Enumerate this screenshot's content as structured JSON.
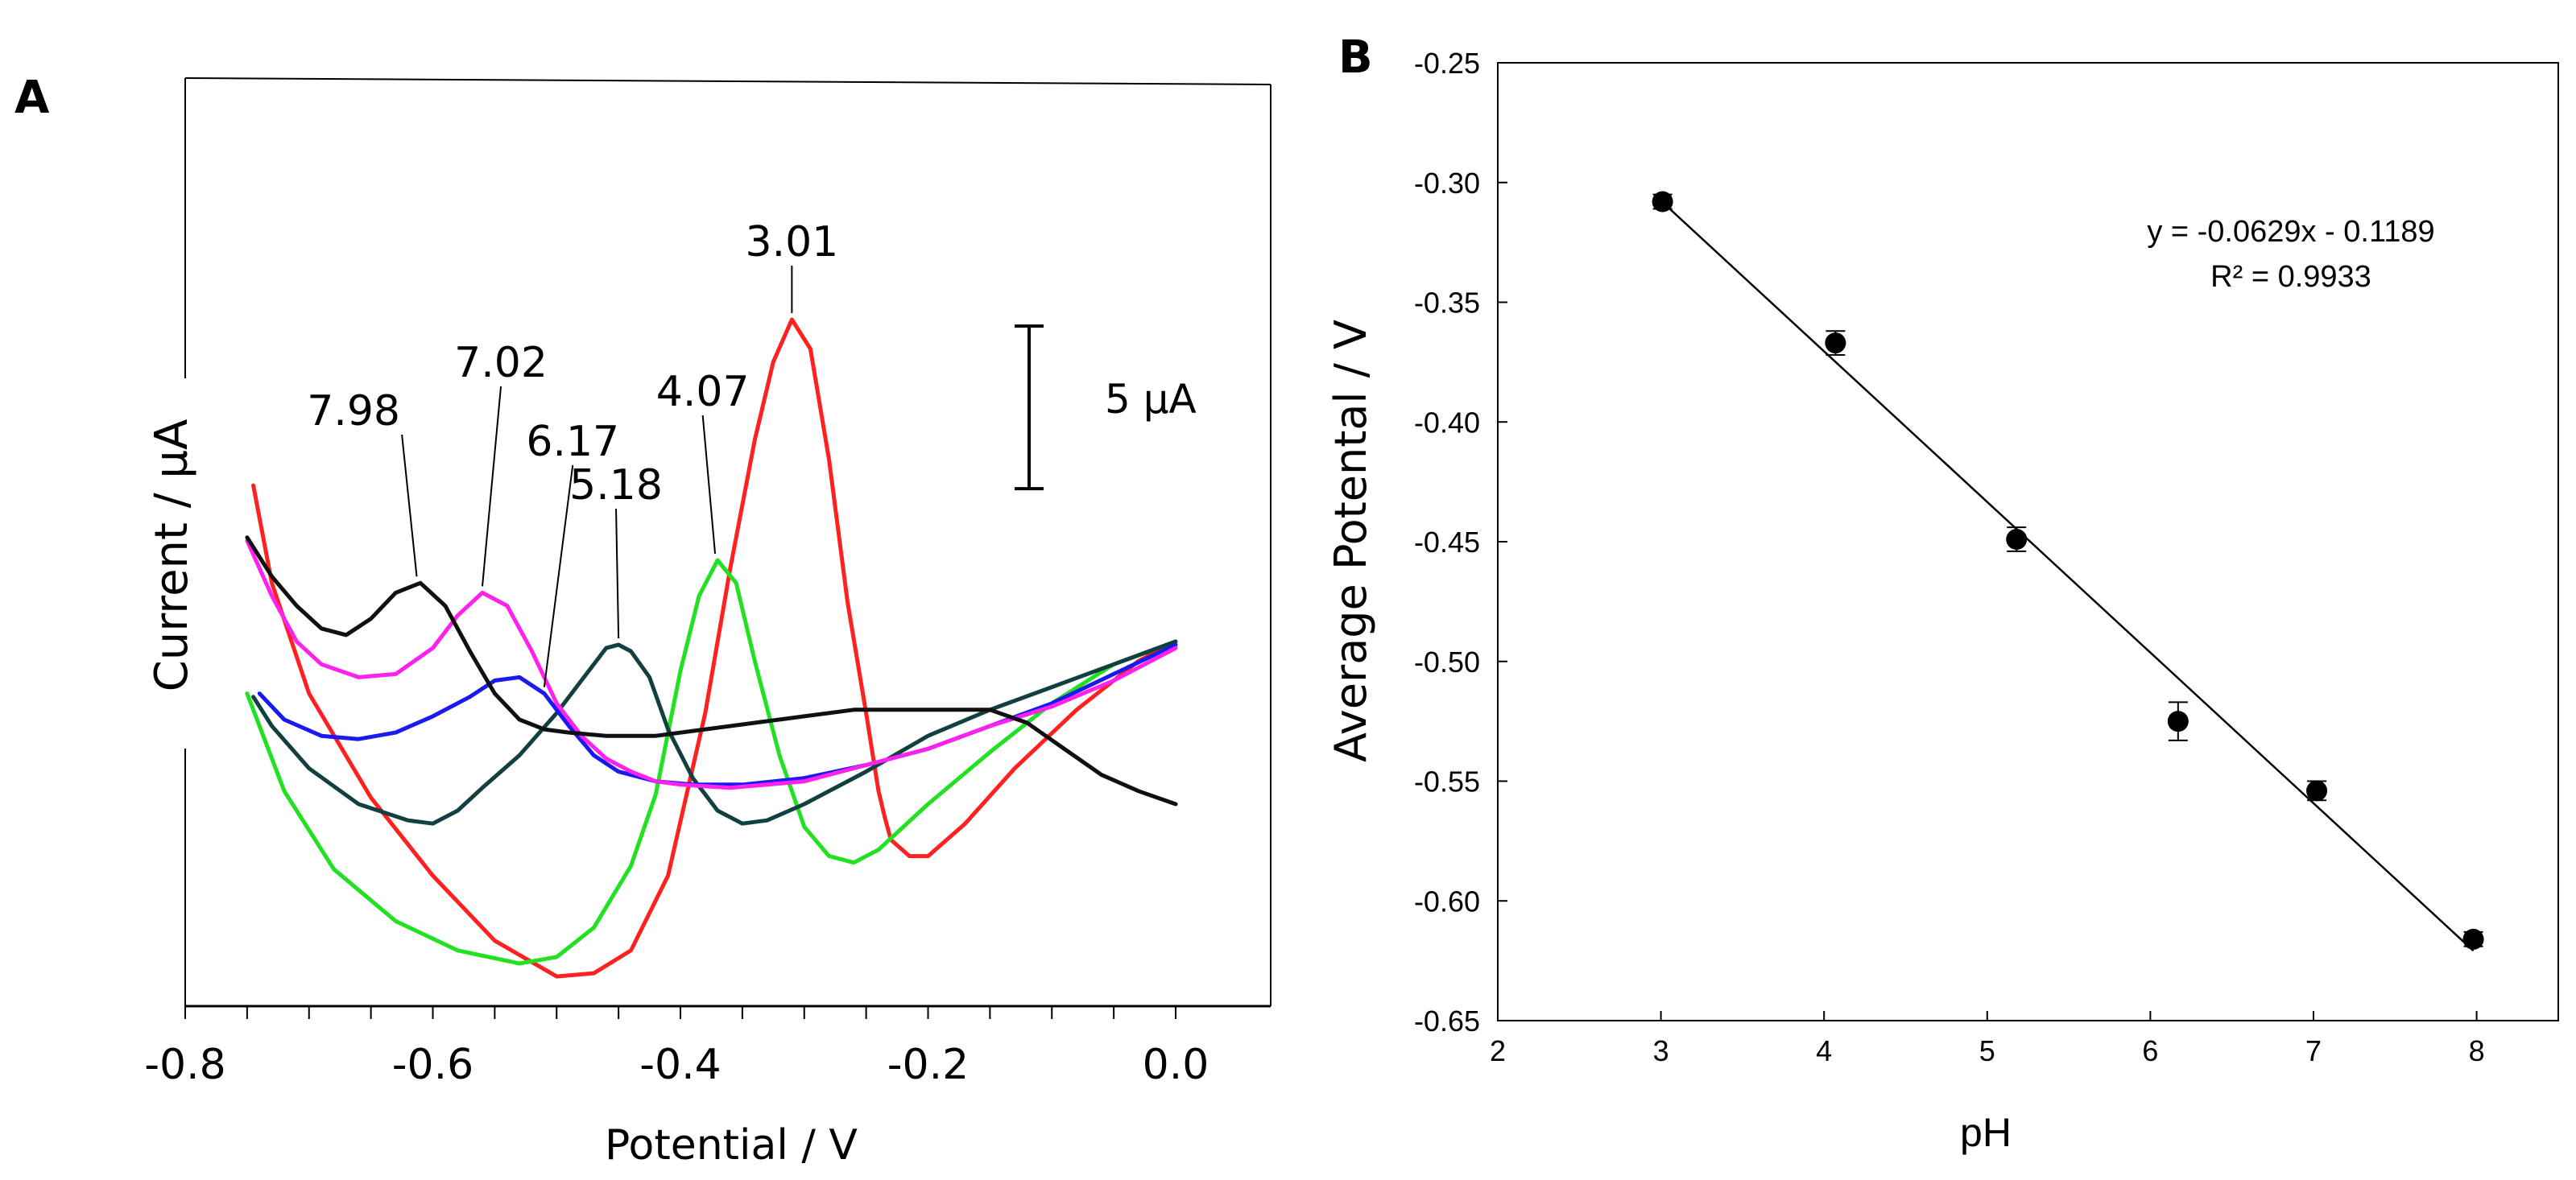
{
  "chart_data": [
    {
      "panel": "A",
      "type": "line",
      "xlabel": "Potential / V",
      "ylabel": "Current / µA",
      "xlim": [
        -0.8,
        0.05
      ],
      "x_ticks": [
        "-0.8",
        "-0.6",
        "-0.4",
        "-0.2",
        "0.0"
      ],
      "x_tick_values": [
        -0.8,
        -0.6,
        -0.4,
        -0.2,
        0.0
      ],
      "x_minor_step": 0.05,
      "ylim": [
        -16,
        16
      ],
      "y_ticks_labeled": false,
      "scale_bar": {
        "label": "5 µA",
        "value": 5,
        "from": 4.7,
        "to": 9.7
      },
      "series": [
        {
          "name": "pH 3.01",
          "color": "#ff2020",
          "x": [
            -0.745,
            -0.73,
            -0.7,
            -0.65,
            -0.6,
            -0.55,
            -0.5,
            -0.47,
            -0.44,
            -0.41,
            -0.38,
            -0.36,
            -0.34,
            -0.325,
            -0.31,
            -0.295,
            -0.28,
            -0.265,
            -0.25,
            -0.24,
            -0.235,
            -0.23,
            -0.215,
            -0.2,
            -0.17,
            -0.13,
            -0.08,
            -0.03,
            0.0
          ],
          "y": [
            4.8,
            1.8,
            -1.6,
            -4.8,
            -7.2,
            -9.2,
            -10.3,
            -10.2,
            -9.5,
            -7.2,
            -2.2,
            2.2,
            6.2,
            8.6,
            9.9,
            9.0,
            5.6,
            1.2,
            -2.2,
            -4.6,
            -5.4,
            -6.1,
            -6.6,
            -6.6,
            -5.6,
            -3.9,
            -2.1,
            -0.6,
            0.0
          ]
        },
        {
          "name": "pH 4.07",
          "color": "#22e022",
          "x": [
            -0.75,
            -0.72,
            -0.68,
            -0.63,
            -0.58,
            -0.53,
            -0.5,
            -0.47,
            -0.44,
            -0.42,
            -0.4,
            -0.385,
            -0.37,
            -0.355,
            -0.34,
            -0.32,
            -0.3,
            -0.28,
            -0.26,
            -0.24,
            -0.2,
            -0.15,
            -0.1,
            -0.05,
            0.0
          ],
          "y": [
            -1.6,
            -4.6,
            -7.0,
            -8.6,
            -9.5,
            -9.9,
            -9.7,
            -8.8,
            -6.9,
            -4.7,
            -0.9,
            1.4,
            2.5,
            1.8,
            -0.6,
            -3.5,
            -5.7,
            -6.6,
            -6.8,
            -6.4,
            -5.0,
            -3.4,
            -1.9,
            -0.7,
            0.0
          ]
        },
        {
          "name": "pH 5.18",
          "color": "#123f40",
          "x": [
            -0.745,
            -0.73,
            -0.7,
            -0.66,
            -0.62,
            -0.6,
            -0.58,
            -0.56,
            -0.53,
            -0.5,
            -0.48,
            -0.46,
            -0.45,
            -0.44,
            -0.425,
            -0.41,
            -0.39,
            -0.37,
            -0.35,
            -0.33,
            -0.3,
            -0.25,
            -0.2,
            -0.15,
            -0.1,
            -0.05,
            0.0
          ],
          "y": [
            -1.7,
            -2.6,
            -3.9,
            -5.0,
            -5.5,
            -5.6,
            -5.2,
            -4.5,
            -3.5,
            -2.2,
            -1.2,
            -0.2,
            -0.1,
            -0.3,
            -1.1,
            -2.7,
            -4.2,
            -5.2,
            -5.6,
            -5.5,
            -5.0,
            -4.0,
            -2.9,
            -2.1,
            -1.4,
            -0.7,
            0.0
          ]
        },
        {
          "name": "pH 6.17",
          "color": "#1a1aee",
          "x": [
            -0.74,
            -0.72,
            -0.69,
            -0.66,
            -0.63,
            -0.6,
            -0.57,
            -0.55,
            -0.53,
            -0.51,
            -0.49,
            -0.47,
            -0.45,
            -0.42,
            -0.39,
            -0.35,
            -0.3,
            -0.25,
            -0.2,
            -0.15,
            -0.1,
            -0.05,
            0.0
          ],
          "y": [
            -1.6,
            -2.4,
            -2.9,
            -3.0,
            -2.8,
            -2.3,
            -1.7,
            -1.2,
            -1.1,
            -1.6,
            -2.6,
            -3.5,
            -4.0,
            -4.3,
            -4.4,
            -4.4,
            -4.2,
            -3.8,
            -3.3,
            -2.6,
            -1.9,
            -1.0,
            -0.1
          ]
        },
        {
          "name": "pH 7.02",
          "color": "#ff22ee",
          "x": [
            -0.75,
            -0.73,
            -0.71,
            -0.69,
            -0.66,
            -0.63,
            -0.6,
            -0.58,
            -0.56,
            -0.54,
            -0.52,
            -0.5,
            -0.48,
            -0.46,
            -0.44,
            -0.42,
            -0.4,
            -0.36,
            -0.3,
            -0.25,
            -0.2,
            -0.15,
            -0.1,
            -0.05,
            0.0
          ],
          "y": [
            3.1,
            1.4,
            0.0,
            -0.7,
            -1.1,
            -1.0,
            -0.2,
            0.8,
            1.5,
            1.1,
            -0.3,
            -1.9,
            -2.9,
            -3.6,
            -4.0,
            -4.3,
            -4.4,
            -4.5,
            -4.3,
            -3.8,
            -3.3,
            -2.6,
            -2.0,
            -1.2,
            -0.2
          ]
        },
        {
          "name": "pH 7.98",
          "color": "#101010",
          "x": [
            -0.75,
            -0.73,
            -0.71,
            -0.69,
            -0.67,
            -0.65,
            -0.63,
            -0.61,
            -0.59,
            -0.57,
            -0.55,
            -0.53,
            -0.51,
            -0.49,
            -0.46,
            -0.42,
            -0.38,
            -0.34,
            -0.3,
            -0.26,
            -0.22,
            -0.18,
            -0.15,
            -0.12,
            -0.09,
            -0.06,
            -0.03,
            0.0
          ],
          "y": [
            3.2,
            2.0,
            1.1,
            0.4,
            0.2,
            0.7,
            1.5,
            1.8,
            1.1,
            -0.3,
            -1.6,
            -2.4,
            -2.7,
            -2.8,
            -2.9,
            -2.9,
            -2.7,
            -2.5,
            -2.3,
            -2.1,
            -2.1,
            -2.1,
            -2.1,
            -2.5,
            -3.3,
            -4.1,
            -4.6,
            -5.0
          ]
        }
      ],
      "peak_labels": [
        {
          "text": "3.01",
          "x": -0.31,
          "y": 9.9
        },
        {
          "text": "4.07",
          "x": -0.372,
          "y": 2.5
        },
        {
          "text": "5.18",
          "x": -0.45,
          "y": -0.1
        },
        {
          "text": "6.17",
          "x": -0.51,
          "y": -1.6
        },
        {
          "text": "7.02",
          "x": -0.56,
          "y": 1.5
        },
        {
          "text": "7.98",
          "x": -0.613,
          "y": 1.8
        }
      ]
    },
    {
      "panel": "B",
      "type": "scatter",
      "xlabel": "pH",
      "ylabel": "Average Potental / V",
      "xlim": [
        2,
        8.5
      ],
      "ylim": [
        -0.65,
        -0.25
      ],
      "x_ticks": [
        "2",
        "3",
        "4",
        "5",
        "6",
        "7",
        "8"
      ],
      "y_ticks": [
        "-0.25",
        "-0.30",
        "-0.35",
        "-0.40",
        "-0.45",
        "-0.50",
        "-0.55",
        "-0.60",
        "-0.65"
      ],
      "points": {
        "x": [
          3.01,
          4.07,
          5.18,
          6.17,
          7.02,
          7.98
        ],
        "y": [
          -0.308,
          -0.367,
          -0.449,
          -0.525,
          -0.554,
          -0.616
        ],
        "err": [
          0.003,
          0.005,
          0.005,
          0.008,
          0.004,
          0.003
        ]
      },
      "fit": {
        "slope": -0.0629,
        "intercept": -0.1189,
        "x_range": [
          3.01,
          7.98
        ]
      },
      "equation": "y = -0.0629x - 0.1189",
      "r2_label": "R² = 0.9933"
    }
  ]
}
